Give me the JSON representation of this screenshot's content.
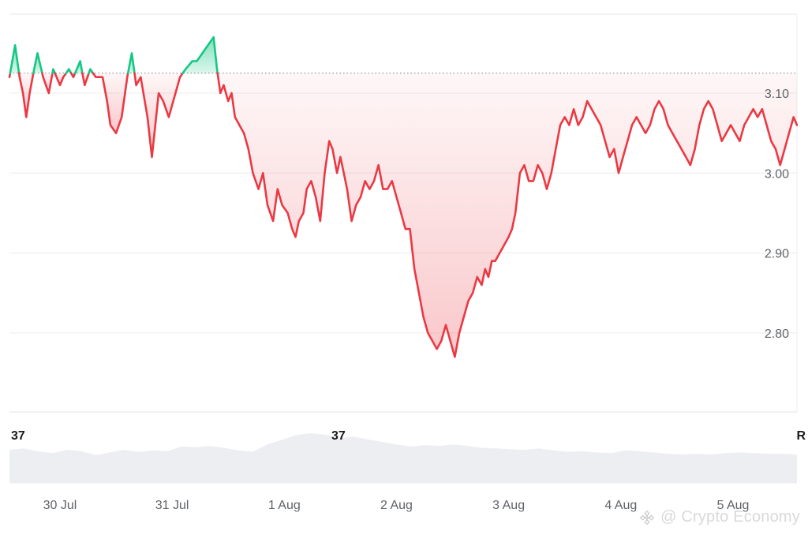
{
  "watermark": {
    "text": "@ Crypto Economy",
    "logo_icon": "binance-diamond-icon"
  },
  "volume_labels": [
    "37",
    "37",
    "R"
  ],
  "colors": {
    "up": "#16c784",
    "down": "#ea3943",
    "grid": "#ececec",
    "baseline": "#8a8a8a",
    "volume": "#e6e8ec"
  },
  "chart_data": {
    "type": "area",
    "title": "",
    "xlabel": "",
    "ylabel": "",
    "baseline": 3.125,
    "ylim": [
      2.75,
      3.12
    ],
    "yticks": [
      2.8,
      2.9,
      3.0,
      3.1
    ],
    "ytick_labels": [
      "2.80",
      "2.90",
      "3.00",
      "3.10"
    ],
    "xlim": [
      29.55,
      5.57
    ],
    "xticks": [
      "30 Jul",
      "31 Jul",
      "1 Aug",
      "2 Aug",
      "3 Aug",
      "4 Aug",
      "5 Aug"
    ],
    "xtick_days": [
      30,
      31,
      32,
      33,
      34,
      35,
      36
    ],
    "series": [
      {
        "x": [
          29.55,
          29.6,
          29.64,
          29.67,
          29.7,
          29.73,
          29.77,
          29.8,
          29.85,
          29.9,
          29.94,
          30.0,
          30.03,
          30.08,
          30.12,
          30.18,
          30.22,
          30.27,
          30.32,
          30.38,
          30.42,
          30.45,
          30.5,
          30.55,
          30.6,
          30.64,
          30.68,
          30.72,
          30.78,
          30.82,
          30.85,
          30.88,
          30.92,
          30.97,
          31.03,
          31.07,
          31.12,
          31.18,
          31.22,
          31.27,
          31.32,
          31.37,
          31.4,
          31.43,
          31.46,
          31.5,
          31.53,
          31.56,
          31.6,
          31.64,
          31.68,
          31.72,
          31.77,
          31.81,
          31.85,
          31.9,
          31.94,
          31.98,
          32.03,
          32.07,
          32.1,
          32.13,
          32.17,
          32.2,
          32.24,
          32.28,
          32.32,
          32.36,
          32.4,
          32.43,
          32.47,
          32.5,
          32.53,
          32.56,
          32.6,
          32.64,
          32.68,
          32.72,
          32.76,
          32.8,
          32.84,
          32.88,
          32.92,
          32.96,
          33.0,
          33.04,
          33.08,
          33.12,
          33.16,
          33.2,
          33.24,
          33.28,
          33.32,
          33.36,
          33.4,
          33.44,
          33.48,
          33.52,
          33.56,
          33.6,
          33.64,
          33.68,
          33.72,
          33.76,
          33.79,
          33.82,
          33.85,
          33.88,
          33.92,
          33.96,
          34.0,
          34.03,
          34.06,
          34.1,
          34.14,
          34.18,
          34.22,
          34.26,
          34.3,
          34.34,
          34.38,
          34.42,
          34.46,
          34.5,
          34.54,
          34.58,
          34.62,
          34.66,
          34.7,
          34.74,
          34.78,
          34.82,
          34.86,
          34.9,
          34.94,
          34.98,
          35.02,
          35.06,
          35.1,
          35.14,
          35.18,
          35.22,
          35.26,
          35.3,
          35.34,
          35.38,
          35.42,
          35.46,
          35.5,
          35.54,
          35.58,
          35.62,
          35.66,
          35.7,
          35.74,
          35.78,
          35.82,
          35.86,
          35.9,
          35.94,
          35.98,
          36.02,
          36.06,
          36.1,
          36.14,
          36.18,
          36.22,
          36.26,
          36.3,
          36.34,
          36.38,
          36.42,
          36.46,
          36.5,
          36.54,
          36.57
        ],
        "y": [
          3.12,
          3.16,
          3.12,
          3.1,
          3.07,
          3.1,
          3.13,
          3.15,
          3.12,
          3.1,
          3.13,
          3.11,
          3.12,
          3.13,
          3.12,
          3.14,
          3.11,
          3.13,
          3.12,
          3.12,
          3.09,
          3.06,
          3.05,
          3.07,
          3.12,
          3.15,
          3.11,
          3.12,
          3.07,
          3.02,
          3.06,
          3.1,
          3.09,
          3.07,
          3.1,
          3.12,
          3.13,
          3.14,
          3.14,
          3.15,
          3.16,
          3.17,
          3.13,
          3.1,
          3.11,
          3.09,
          3.1,
          3.07,
          3.06,
          3.05,
          3.03,
          3.0,
          2.98,
          3.0,
          2.96,
          2.94,
          2.98,
          2.96,
          2.95,
          2.93,
          2.92,
          2.94,
          2.95,
          2.98,
          2.99,
          2.97,
          2.94,
          3.0,
          3.04,
          3.03,
          3.0,
          3.02,
          3.0,
          2.98,
          2.94,
          2.96,
          2.97,
          2.99,
          2.98,
          2.99,
          3.01,
          2.98,
          2.98,
          2.99,
          2.97,
          2.95,
          2.93,
          2.93,
          2.88,
          2.85,
          2.82,
          2.8,
          2.79,
          2.78,
          2.79,
          2.81,
          2.79,
          2.77,
          2.8,
          2.82,
          2.84,
          2.85,
          2.87,
          2.86,
          2.88,
          2.87,
          2.89,
          2.89,
          2.9,
          2.91,
          2.92,
          2.93,
          2.95,
          3.0,
          3.01,
          2.99,
          2.99,
          3.01,
          3.0,
          2.98,
          3.0,
          3.03,
          3.06,
          3.07,
          3.06,
          3.08,
          3.06,
          3.07,
          3.09,
          3.08,
          3.07,
          3.06,
          3.04,
          3.02,
          3.03,
          3.0,
          3.02,
          3.04,
          3.06,
          3.07,
          3.06,
          3.05,
          3.06,
          3.08,
          3.09,
          3.08,
          3.06,
          3.05,
          3.04,
          3.03,
          3.02,
          3.01,
          3.03,
          3.06,
          3.08,
          3.09,
          3.08,
          3.06,
          3.04,
          3.05,
          3.06,
          3.05,
          3.04,
          3.06,
          3.07,
          3.08,
          3.07,
          3.08,
          3.06,
          3.04,
          3.03,
          3.01,
          3.03,
          3.05,
          3.07,
          3.06
        ]
      }
    ],
    "volume_series": [
      0.5,
      0.52,
      0.48,
      0.45,
      0.5,
      0.48,
      0.42,
      0.46,
      0.5,
      0.47,
      0.49,
      0.48,
      0.55,
      0.54,
      0.56,
      0.53,
      0.49,
      0.47,
      0.58,
      0.65,
      0.72,
      0.75,
      0.73,
      0.68,
      0.7,
      0.66,
      0.62,
      0.58,
      0.55,
      0.57,
      0.56,
      0.58,
      0.56,
      0.53,
      0.52,
      0.51,
      0.5,
      0.52,
      0.49,
      0.47,
      0.48,
      0.46,
      0.45,
      0.49,
      0.48,
      0.46,
      0.44,
      0.43,
      0.44,
      0.43,
      0.45,
      0.46,
      0.45,
      0.44,
      0.44,
      0.43
    ],
    "grid": true,
    "legend": "none"
  }
}
